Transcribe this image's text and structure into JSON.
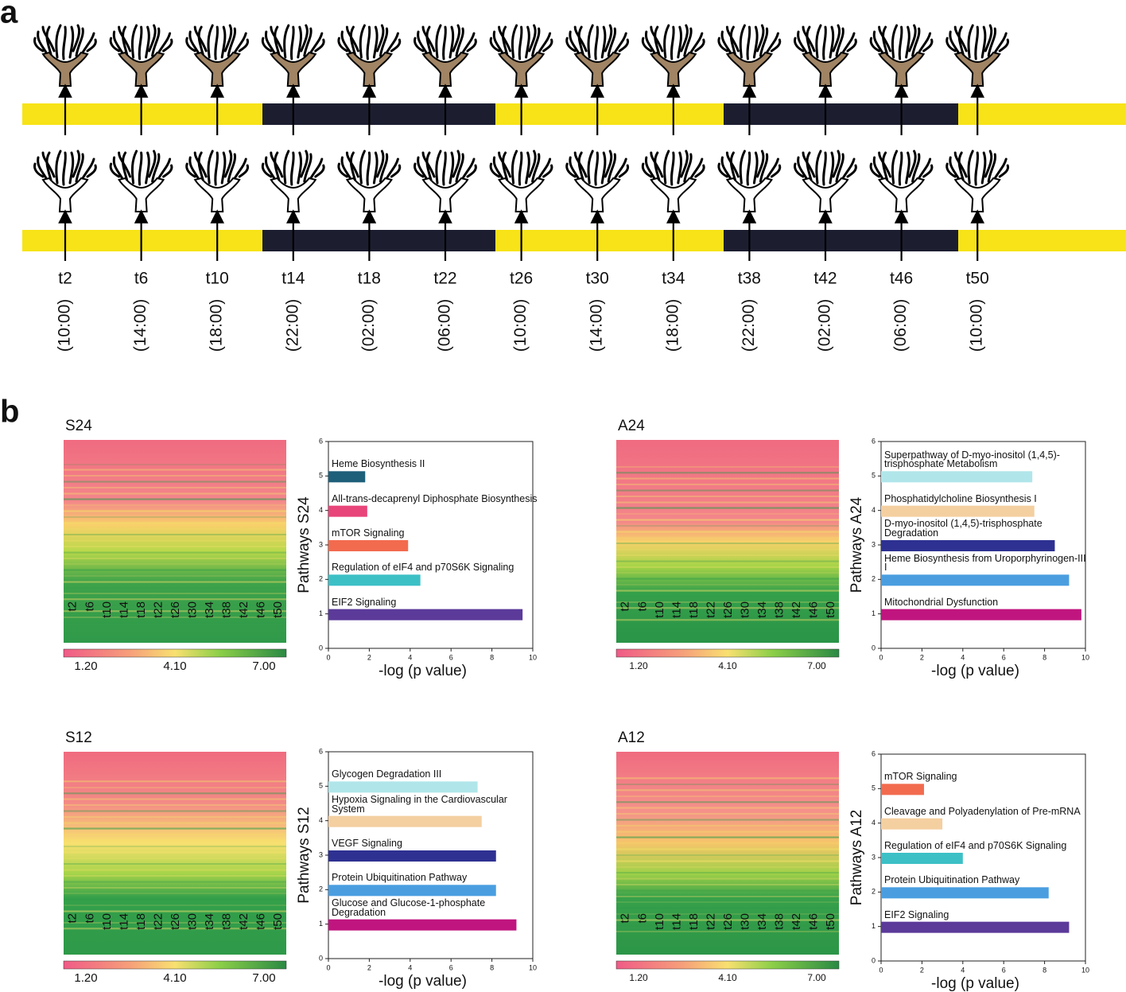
{
  "panel_a": {
    "label": "a",
    "timepoints": [
      {
        "name": "t2",
        "clock": "(10:00)"
      },
      {
        "name": "t6",
        "clock": "(14:00)"
      },
      {
        "name": "t10",
        "clock": "(18:00)"
      },
      {
        "name": "t14",
        "clock": "(22:00)"
      },
      {
        "name": "t18",
        "clock": "(02:00)"
      },
      {
        "name": "t22",
        "clock": "(06:00)"
      },
      {
        "name": "t26",
        "clock": "(10:00)"
      },
      {
        "name": "t30",
        "clock": "(14:00)"
      },
      {
        "name": "t34",
        "clock": "(18:00)"
      },
      {
        "name": "t38",
        "clock": "(22:00)"
      },
      {
        "name": "t42",
        "clock": "(02:00)"
      },
      {
        "name": "t46",
        "clock": "(06:00)"
      },
      {
        "name": "t50",
        "clock": "(10:00)"
      }
    ]
  },
  "panel_b": {
    "label": "b",
    "heatmaps": [
      {
        "title": "S24",
        "columns": [
          "t2",
          "t6",
          "t10",
          "t14",
          "t18",
          "t22",
          "t26",
          "t30",
          "t34",
          "t38",
          "t42",
          "t46",
          "t50"
        ],
        "colorbar": [
          {
            "value": 1.2,
            "label": "1.20"
          },
          {
            "value": 4.1,
            "label": "4.10"
          },
          {
            "value": 7.0,
            "label": "7.00"
          }
        ]
      },
      {
        "title": "A24",
        "columns": [
          "t2",
          "t6",
          "t10",
          "t14",
          "t18",
          "t22",
          "t26",
          "t30",
          "t34",
          "t38",
          "t42",
          "t46",
          "t50"
        ],
        "colorbar": [
          {
            "value": 1.2,
            "label": "1.20"
          },
          {
            "value": 4.1,
            "label": "4.10"
          },
          {
            "value": 7.0,
            "label": "7.00"
          }
        ]
      },
      {
        "title": "S12",
        "columns": [
          "t2",
          "t6",
          "t10",
          "t14",
          "t18",
          "t22",
          "t26",
          "t30",
          "t34",
          "t38",
          "t42",
          "t46",
          "t50"
        ],
        "colorbar": [
          {
            "value": 1.2,
            "label": "1.20"
          },
          {
            "value": 4.1,
            "label": "4.10"
          },
          {
            "value": 7.0,
            "label": "7.00"
          }
        ]
      },
      {
        "title": "A12",
        "columns": [
          "t2",
          "t6",
          "t10",
          "t14",
          "t18",
          "t22",
          "t26",
          "t30",
          "t34",
          "t38",
          "t42",
          "t46",
          "t50"
        ],
        "colorbar": [
          {
            "value": 1.2,
            "label": "1.20"
          },
          {
            "value": 4.1,
            "label": "4.10"
          },
          {
            "value": 7.0,
            "label": "7.00"
          }
        ]
      }
    ]
  },
  "chart_data": [
    {
      "type": "bar",
      "orientation": "horizontal",
      "ylabel": "Pathways S24",
      "xlabel": "-log (p value)",
      "categories": [
        "EIF2 Signaling",
        "Regulation of eIF4 and p70S6K Signaling",
        "mTOR Signaling",
        "All-trans-decaprenyl Diphosphate Biosynthesis",
        "Heme Biosynthesis II"
      ],
      "values": [
        9.5,
        4.5,
        3.9,
        1.9,
        1.8
      ],
      "colors": [
        "#5b3a9a",
        "#3cc0c6",
        "#f26b4f",
        "#e8457a",
        "#1e5f7a"
      ],
      "xlim": [
        0,
        10
      ],
      "xticks": [
        0,
        2,
        4,
        6,
        8,
        10
      ],
      "ylim": [
        0,
        6
      ],
      "yticks": [
        0,
        1,
        2,
        3,
        4,
        5,
        6
      ]
    },
    {
      "type": "bar",
      "orientation": "horizontal",
      "ylabel": "Pathways A24",
      "xlabel": "-log (p value)",
      "categories": [
        "Mitochondrial Dysfunction",
        "Heme Biosynthesis from Uroporphyrinogen-III I",
        "D-myo-inositol (1,4,5)-trisphosphate Degradation",
        "Phosphatidylcholine Biosynthesis I",
        "Superpathway of D-myo-inositol (1,4,5)-trisphosphate Metabolism"
      ],
      "values": [
        9.8,
        9.2,
        8.5,
        7.5,
        7.4
      ],
      "colors": [
        "#c0157f",
        "#4a9ee0",
        "#2e3192",
        "#f4cfa0",
        "#b0e6ea"
      ],
      "xlim": [
        0,
        10
      ],
      "xticks": [
        0,
        2,
        4,
        6,
        8,
        10
      ],
      "ylim": [
        0,
        6
      ],
      "yticks": [
        0,
        1,
        2,
        3,
        4,
        5,
        6
      ]
    },
    {
      "type": "bar",
      "orientation": "horizontal",
      "ylabel": "Pathways S12",
      "xlabel": "-log (p value)",
      "categories": [
        "Glucose and Glucose-1-phosphate Degradation",
        "Protein Ubiquitination Pathway",
        "VEGF Signaling",
        "Hypoxia Signaling in the Cardiovascular System",
        "Glycogen Degradation III"
      ],
      "values": [
        9.2,
        8.2,
        8.2,
        7.5,
        7.3
      ],
      "colors": [
        "#c0157f",
        "#4a9ee0",
        "#2e3192",
        "#f4cfa0",
        "#b0e6ea"
      ],
      "xlim": [
        0,
        10
      ],
      "xticks": [
        0,
        2,
        4,
        6,
        8,
        10
      ],
      "ylim": [
        0,
        6
      ],
      "yticks": [
        0,
        1,
        2,
        3,
        4,
        5,
        6
      ]
    },
    {
      "type": "bar",
      "orientation": "horizontal",
      "ylabel": "Pathways A12",
      "xlabel": "-log (p value)",
      "categories": [
        "EIF2 Signaling",
        "Protein Ubiquitination Pathway",
        "Regulation of eIF4 and p70S6K Signaling",
        "Cleavage and Polyadenylation of Pre-mRNA",
        "mTOR Signaling"
      ],
      "values": [
        9.2,
        8.2,
        4.0,
        3.0,
        2.1
      ],
      "colors": [
        "#5b3a9a",
        "#4a9ee0",
        "#3cc0c6",
        "#f4cfa0",
        "#f26b4f"
      ],
      "xlim": [
        0,
        10
      ],
      "xticks": [
        0,
        2,
        4,
        6,
        8,
        10
      ],
      "ylim": [
        0,
        6
      ],
      "yticks": [
        0,
        1,
        2,
        3,
        4,
        5,
        6
      ]
    }
  ]
}
